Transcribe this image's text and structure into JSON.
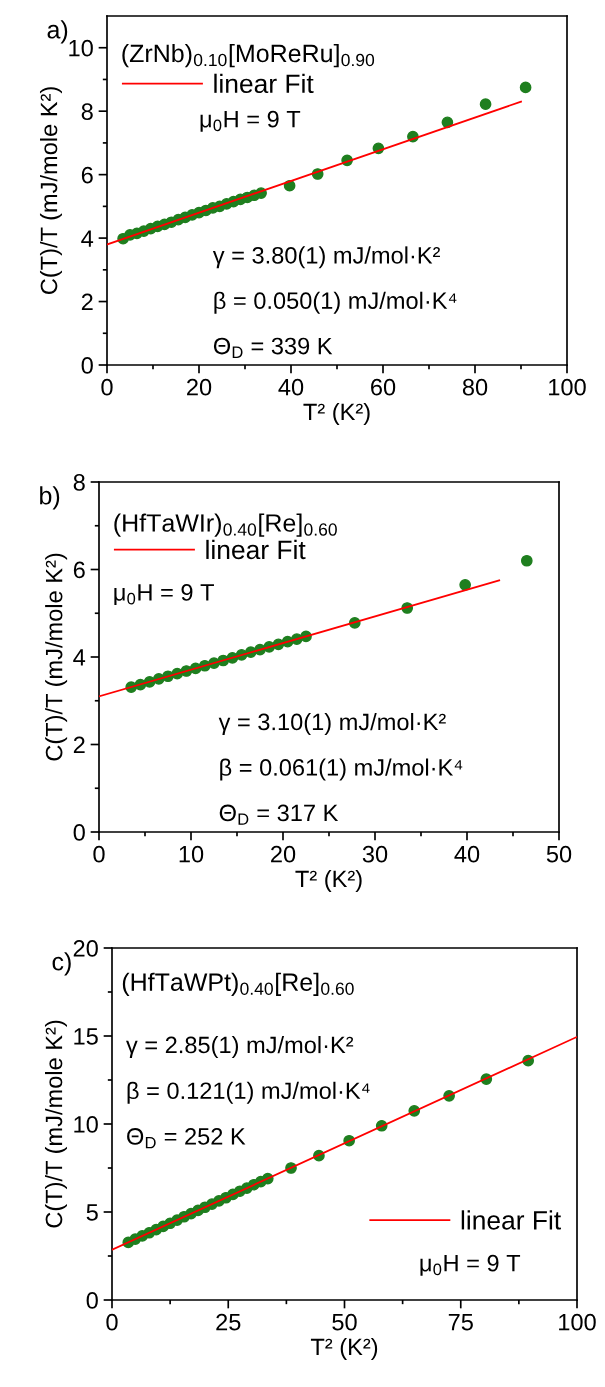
{
  "chart_data": [
    {
      "type": "scatter",
      "xlabel": "T² (K²)",
      "ylabel": "C(T)/T (mJ/mole K²)",
      "xlim": [
        0,
        100
      ],
      "ylim": [
        0,
        11
      ],
      "xticks": [
        0,
        {
          "value": 10,
          "label": null
        },
        20,
        {
          "value": 30,
          "label": null
        },
        40,
        {
          "value": 50,
          "label": null
        },
        60,
        {
          "value": 70,
          "label": null
        },
        80,
        {
          "value": 90,
          "label": null
        },
        100
      ],
      "yticks": [
        0,
        {
          "value": 1,
          "label": null
        },
        2,
        {
          "value": 3,
          "label": null
        },
        4,
        {
          "value": 5,
          "label": null
        },
        6,
        {
          "value": 7,
          "label": null
        },
        8,
        {
          "value": 9,
          "label": null
        },
        10
      ],
      "legend": "top left",
      "grid": false,
      "annotations": [
        "a)",
        "(ZrNb)$_{0.10}$[MoReRu]$_{0.90}$",
        "μ$_{0}$H = 9 T",
        "γ = 3.80(1) mJ/mol·K²",
        "β = 0.050(1) mJ/mol·K⁴",
        "Θ$_{D}$ = 339 K"
      ],
      "series": [
        {
          "color": "#1f7f1f",
          "marker": "circle",
          "x": [
            3.5,
            5,
            6.5,
            8,
            9.5,
            11,
            12.5,
            14,
            15.5,
            17,
            18.5,
            20,
            21.5,
            23,
            24.5,
            26,
            27.5,
            29,
            30.5,
            32,
            33.5,
            39.7,
            45.8,
            52.2,
            59,
            66.5,
            74,
            82.3,
            91
          ],
          "values": [
            3.98,
            4.1,
            4.15,
            4.22,
            4.3,
            4.37,
            4.43,
            4.5,
            4.58,
            4.65,
            4.73,
            4.8,
            4.87,
            4.95,
            5.0,
            5.08,
            5.15,
            5.22,
            5.28,
            5.35,
            5.42,
            5.65,
            6.02,
            6.45,
            6.83,
            7.2,
            7.65,
            8.22,
            8.75
          ]
        },
        {
          "type": "line",
          "name": "linear Fit",
          "color": "#ff0000",
          "x": [
            0,
            90
          ],
          "values": [
            3.8,
            8.3
          ]
        }
      ]
    },
    {
      "type": "scatter",
      "xlabel": "T² (K²)",
      "ylabel": "C(T)/T (mJ/mole K²)",
      "xlim": [
        0,
        50
      ],
      "ylim": [
        0,
        8
      ],
      "xticks": [
        0,
        {
          "value": 5,
          "label": null
        },
        10,
        {
          "value": 15,
          "label": null
        },
        20,
        {
          "value": 25,
          "label": null
        },
        30,
        {
          "value": 35,
          "label": null
        },
        40,
        {
          "value": 45,
          "label": null
        },
        50
      ],
      "yticks": [
        0,
        {
          "value": 1,
          "label": null
        },
        2,
        {
          "value": 3,
          "label": null
        },
        4,
        {
          "value": 5,
          "label": null
        },
        6,
        {
          "value": 7,
          "label": null
        },
        8
      ],
      "legend": "top left",
      "grid": false,
      "annotations": [
        "b)",
        "(HfTaWIr)$_{0.40}$[Re]$_{0.60}$",
        "μ$_{0}$H = 9 T",
        "γ = 3.10(1) mJ/mol·K²",
        "β = 0.061(1) mJ/mol·K⁴",
        "Θ$_{D}$ = 317 K"
      ],
      "series": [
        {
          "color": "#1f7f1f",
          "marker": "circle",
          "x": [
            3.5,
            4.5,
            5.5,
            6.5,
            7.5,
            8.5,
            9.5,
            10.5,
            11.5,
            12.5,
            13.5,
            14.5,
            15.5,
            16.5,
            17.5,
            18.5,
            19.5,
            20.5,
            21.5,
            22.5,
            27.8,
            33.5,
            39.8,
            46.5
          ],
          "values": [
            3.31,
            3.37,
            3.43,
            3.5,
            3.56,
            3.62,
            3.68,
            3.74,
            3.8,
            3.86,
            3.92,
            3.98,
            4.05,
            4.11,
            4.17,
            4.23,
            4.29,
            4.35,
            4.41,
            4.47,
            4.78,
            5.12,
            5.65,
            6.2
          ]
        },
        {
          "type": "line",
          "name": "linear Fit",
          "color": "#ff0000",
          "x": [
            0,
            43.5
          ],
          "values": [
            3.1,
            5.75
          ]
        }
      ]
    },
    {
      "type": "scatter",
      "xlabel": "T² (K²)",
      "ylabel": "C(T)/T (mJ/mole K²)",
      "xlim": [
        0,
        100
      ],
      "ylim": [
        0,
        20
      ],
      "xticks": [
        0,
        {
          "value": 12.5,
          "label": null
        },
        25,
        {
          "value": 37.5,
          "label": null
        },
        50,
        {
          "value": 62.5,
          "label": null
        },
        75,
        {
          "value": 87.5,
          "label": null
        },
        100
      ],
      "yticks": [
        0,
        {
          "value": 2.5,
          "label": null
        },
        5,
        {
          "value": 7.5,
          "label": null
        },
        10,
        {
          "value": 12.5,
          "label": null
        },
        15,
        {
          "value": 17.5,
          "label": null
        },
        20
      ],
      "legend": "bottom right",
      "grid": false,
      "annotations": [
        "c)",
        "(HfTaWPt)$_{0.40}$[Re]$_{0.60}$",
        "μ$_{0}$H = 9 T",
        "γ = 2.85(1) mJ/mol·K²",
        "β = 0.121(1) mJ/mol·K⁴",
        "Θ$_{D}$ = 252 K"
      ],
      "series": [
        {
          "color": "#1f7f1f",
          "marker": "circle",
          "x": [
            3.5,
            5,
            6.5,
            8,
            9.5,
            11,
            12.5,
            14,
            15.5,
            17,
            18.5,
            20,
            21.5,
            23,
            24.5,
            26,
            27.5,
            29,
            30.5,
            32,
            33.5,
            38.5,
            44.5,
            51,
            58,
            65,
            72.5,
            80.5,
            89.5
          ],
          "values": [
            3.27,
            3.46,
            3.64,
            3.82,
            4.0,
            4.18,
            4.36,
            4.54,
            4.73,
            4.91,
            5.09,
            5.27,
            5.45,
            5.63,
            5.81,
            6.0,
            6.18,
            6.36,
            6.55,
            6.73,
            6.9,
            7.5,
            8.2,
            9.05,
            9.9,
            10.75,
            11.6,
            12.55,
            13.6
          ]
        },
        {
          "type": "line",
          "name": "linear Fit",
          "color": "#ff0000",
          "x": [
            0,
            100
          ],
          "values": [
            2.85,
            14.95
          ]
        }
      ]
    }
  ]
}
